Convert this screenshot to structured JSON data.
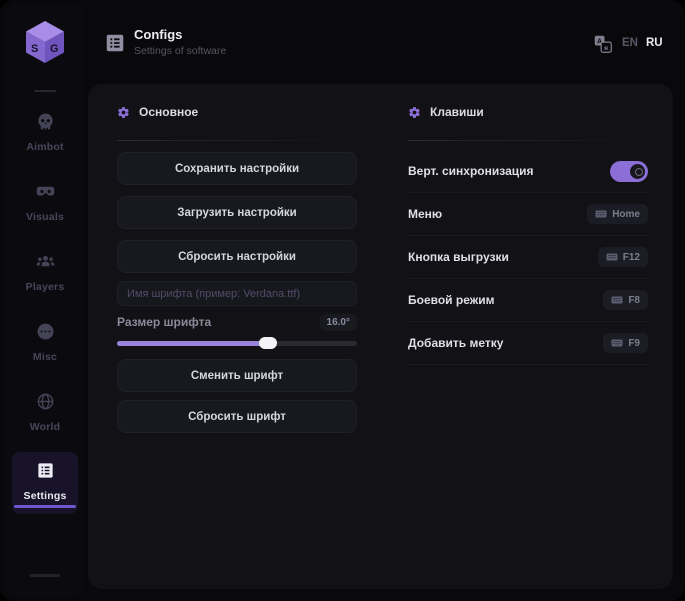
{
  "colors": {
    "accent": "#8b6fd6",
    "accent_light": "#a78ce8",
    "background": "#09090c",
    "panel": "#111116",
    "slider_fill": "#9b82d9"
  },
  "logo": {
    "letter_left": "S",
    "letter_right": "G"
  },
  "header": {
    "title": "Configs",
    "subtitle": "Settings of software",
    "lang_en": "EN",
    "lang_ru": "RU",
    "active_lang": "RU"
  },
  "sidebar": {
    "active": "Settings",
    "items": [
      {
        "label": "Aimbot",
        "icon": "skull-icon"
      },
      {
        "label": "Visuals",
        "icon": "goggles-icon"
      },
      {
        "label": "Players",
        "icon": "players-icon"
      },
      {
        "label": "Misc",
        "icon": "chat-dots-icon"
      },
      {
        "label": "World",
        "icon": "globe-icon"
      },
      {
        "label": "Settings",
        "icon": "list-box-icon"
      }
    ]
  },
  "general": {
    "title": "Основное",
    "save_button": "Сохранить настройки",
    "load_button": "Загрузить настройки",
    "reset_button": "Сбросить настройки",
    "font_name_placeholder": "Имя шрифта (пример: Verdana.ttf)",
    "font_size_label": "Размер шрифта",
    "font_size_value": "16.0°",
    "slider_percent": 63,
    "change_font_button": "Сменить шрифт",
    "reset_font_button": "Сбросить шрифт"
  },
  "keys": {
    "title": "Клавиши",
    "rows": [
      {
        "label": "Верт. синхронизация",
        "control": "toggle",
        "value": "on"
      },
      {
        "label": "Меню",
        "control": "keybind",
        "key": "Home"
      },
      {
        "label": "Кнопка выгрузки",
        "control": "keybind",
        "key": "F12"
      },
      {
        "label": "Боевой режим",
        "control": "keybind",
        "key": "F8"
      },
      {
        "label": "Добавить метку",
        "control": "keybind",
        "key": "F9"
      }
    ]
  }
}
